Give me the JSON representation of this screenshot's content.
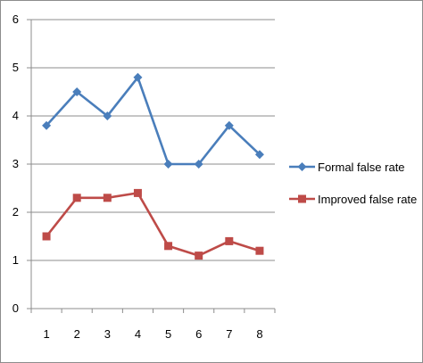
{
  "chart_data": {
    "type": "line",
    "title": "",
    "xlabel": "",
    "ylabel": "",
    "categories": [
      "1",
      "2",
      "3",
      "4",
      "5",
      "6",
      "7",
      "8"
    ],
    "ylim": [
      0,
      6
    ],
    "yticks": [
      "0",
      "1",
      "2",
      "3",
      "4",
      "5",
      "6"
    ],
    "grid": true,
    "legend_position": "right",
    "series": [
      {
        "name": "Formal false rate",
        "values": [
          3.8,
          4.5,
          4.0,
          4.8,
          3.0,
          3.0,
          3.8,
          3.2
        ],
        "color": "#4a7ebb",
        "marker": "diamond"
      },
      {
        "name": "Improved false rate",
        "values": [
          1.5,
          2.3,
          2.3,
          2.4,
          1.3,
          1.1,
          1.4,
          1.2
        ],
        "color": "#be4b48",
        "marker": "square"
      }
    ]
  }
}
